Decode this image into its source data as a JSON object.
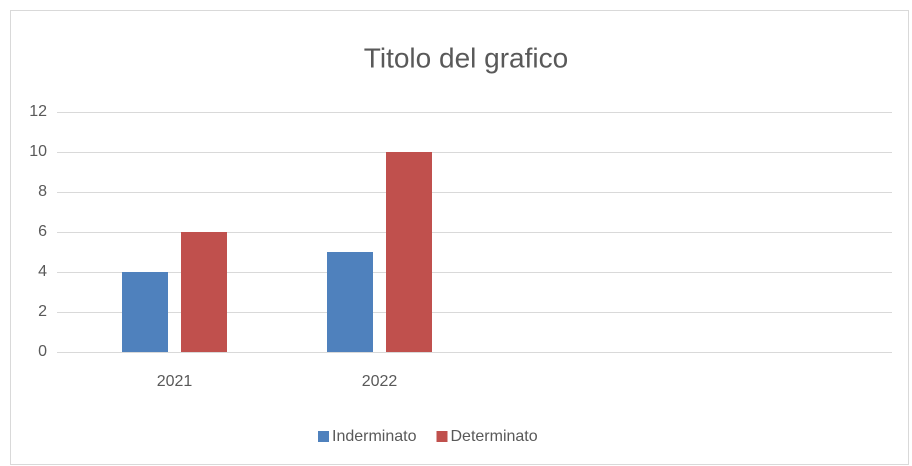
{
  "chart_data": {
    "type": "bar",
    "title": "Titolo del grafico",
    "categories": [
      "2021",
      "2022",
      null,
      null
    ],
    "series": [
      {
        "name": "Inderminato",
        "color": "#4f81bd",
        "values": [
          4,
          5,
          null,
          null
        ]
      },
      {
        "name": "Determinato",
        "color": "#c0504d",
        "values": [
          6,
          10,
          null,
          null
        ]
      }
    ],
    "ylim": [
      0,
      12
    ],
    "yticks": [
      0,
      2,
      4,
      6,
      8,
      10,
      12
    ],
    "grid": true,
    "legend": "bottom"
  }
}
